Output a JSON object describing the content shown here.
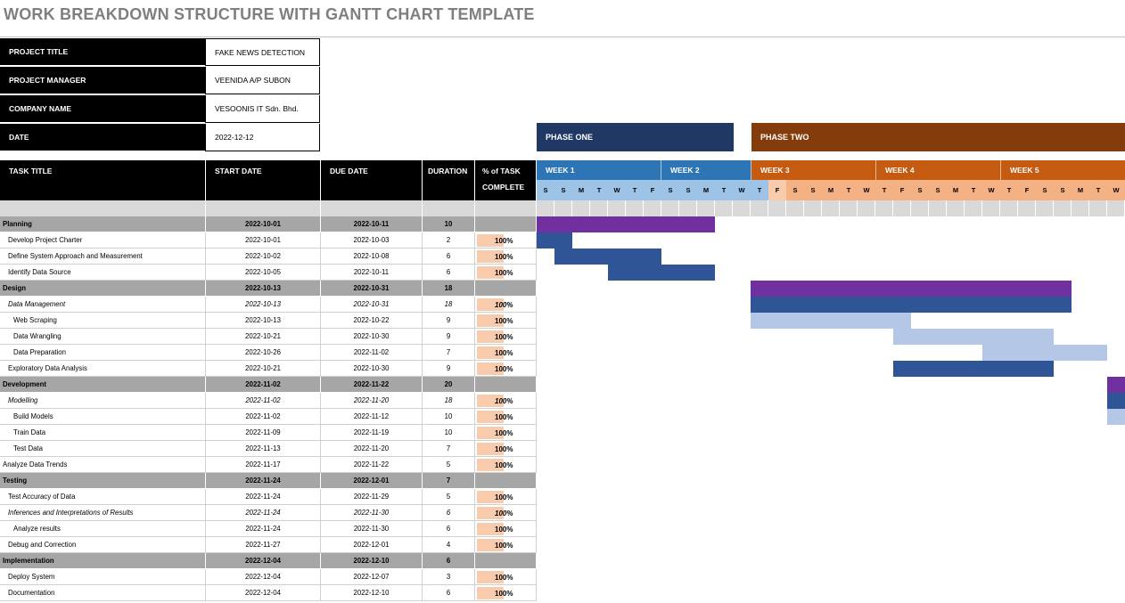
{
  "title": "WORK BREAKDOWN STRUCTURE WITH GANTT CHART TEMPLATE",
  "project_info": [
    {
      "label": "PROJECT TITLE",
      "value": "FAKE NEWS DETECTION"
    },
    {
      "label": "PROJECT MANAGER",
      "value": "VEENIDA A/P SUBON"
    },
    {
      "label": "COMPANY NAME",
      "value": "VESOONIS IT Sdn. Bhd."
    },
    {
      "label": "DATE",
      "value": "2022-12-12"
    }
  ],
  "phases": [
    {
      "label": "PHASE ONE",
      "color": "#203864"
    },
    {
      "label": "PHASE TWO",
      "color": "#843c0c"
    }
  ],
  "table_headers": {
    "task_title": "TASK TITLE",
    "start_date": "START DATE",
    "due_date": "DUE DATE",
    "duration": "DURATION",
    "pct_line1": "% of TASK",
    "pct_line2": "COMPLETE"
  },
  "weeks": [
    {
      "label": "WEEK 1",
      "color": "#2e75b6"
    },
    {
      "label": "WEEK 2",
      "color": "#2e75b6"
    },
    {
      "label": "WEEK 3",
      "color": "#c55a11"
    },
    {
      "label": "WEEK 4",
      "color": "#c55a11"
    },
    {
      "label": "WEEK 5",
      "color": "#c55a11"
    }
  ],
  "days": [
    "S",
    "S",
    "M",
    "T",
    "W",
    "T",
    "F",
    "S",
    "S",
    "M",
    "T",
    "W",
    "T",
    "F",
    "S",
    "S",
    "M",
    "T",
    "W",
    "T",
    "F",
    "S",
    "S",
    "M",
    "T",
    "W",
    "T",
    "F",
    "S",
    "S",
    "M",
    "T",
    "W"
  ],
  "tasks": [
    {
      "title": "Planning",
      "start": "2022-10-01",
      "due": "2022-10-11",
      "duration": "10",
      "pct": "",
      "kind": "phase"
    },
    {
      "title": "Develop Project Charter",
      "start": "2022-10-01",
      "due": "2022-10-03",
      "duration": "2",
      "pct": "100%",
      "kind": "task",
      "indent": 1
    },
    {
      "title": "Define System Approach and Measurement",
      "start": "2022-10-02",
      "due": "2022-10-08",
      "duration": "6",
      "pct": "100%",
      "kind": "task",
      "indent": 1
    },
    {
      "title": "Identify Data Source",
      "start": "2022-10-05",
      "due": "2022-10-11",
      "duration": "6",
      "pct": "100%",
      "kind": "task",
      "indent": 1
    },
    {
      "title": "Design",
      "start": "2022-10-13",
      "due": "2022-10-31",
      "duration": "18",
      "pct": "",
      "kind": "phase"
    },
    {
      "title": "Data Management",
      "start": "2022-10-13",
      "due": "2022-10-31",
      "duration": "18",
      "pct": "100%",
      "kind": "sub",
      "indent": 1
    },
    {
      "title": "Web Scraping",
      "start": "2022-10-13",
      "due": "2022-10-22",
      "duration": "9",
      "pct": "100%",
      "kind": "task",
      "indent": 2
    },
    {
      "title": "Data Wrangling",
      "start": "2022-10-21",
      "due": "2022-10-30",
      "duration": "9",
      "pct": "100%",
      "kind": "task",
      "indent": 2
    },
    {
      "title": "Data Preparation",
      "start": "2022-10-26",
      "due": "2022-11-02",
      "duration": "7",
      "pct": "100%",
      "kind": "task",
      "indent": 2
    },
    {
      "title": "Exploratory Data Analysis",
      "start": "2022-10-21",
      "due": "2022-10-30",
      "duration": "9",
      "pct": "100%",
      "kind": "task",
      "indent": 1
    },
    {
      "title": "Development",
      "start": "2022-11-02",
      "due": "2022-11-22",
      "duration": "20",
      "pct": "",
      "kind": "phase"
    },
    {
      "title": "Modelling",
      "start": "2022-11-02",
      "due": "2022-11-20",
      "duration": "18",
      "pct": "100%",
      "kind": "sub",
      "indent": 1
    },
    {
      "title": "Build Models",
      "start": "2022-11-02",
      "due": "2022-11-12",
      "duration": "10",
      "pct": "100%",
      "kind": "task",
      "indent": 2
    },
    {
      "title": "Train Data",
      "start": "2022-11-09",
      "due": "2022-11-19",
      "duration": "10",
      "pct": "100%",
      "kind": "task",
      "indent": 2
    },
    {
      "title": "Test Data",
      "start": "2022-11-13",
      "due": "2022-11-20",
      "duration": "7",
      "pct": "100%",
      "kind": "task",
      "indent": 2
    },
    {
      "title": "Analyze Data Trends",
      "start": "2022-11-17",
      "due": "2022-11-22",
      "duration": "5",
      "pct": "100%",
      "kind": "task",
      "indent": 0
    },
    {
      "title": "Testing",
      "start": "2022-11-24",
      "due": "2022-12-01",
      "duration": "7",
      "pct": "",
      "kind": "phase"
    },
    {
      "title": "Test Accuracy of Data",
      "start": "2022-11-24",
      "due": "2022-11-29",
      "duration": "5",
      "pct": "100%",
      "kind": "task",
      "indent": 1
    },
    {
      "title": "Inferences and Interpretations of Results",
      "start": "2022-11-24",
      "due": "2022-11-30",
      "duration": "6",
      "pct": "100%",
      "kind": "sub",
      "indent": 1
    },
    {
      "title": "Analyze results",
      "start": "2022-11-24",
      "due": "2022-11-30",
      "duration": "6",
      "pct": "100%",
      "kind": "task",
      "indent": 2
    },
    {
      "title": "Debug and Correction",
      "start": "2022-11-27",
      "due": "2022-12-01",
      "duration": "4",
      "pct": "100%",
      "kind": "task",
      "indent": 1
    },
    {
      "title": "Implementation",
      "start": "2022-12-04",
      "due": "2022-12-10",
      "duration": "6",
      "pct": "",
      "kind": "phase"
    },
    {
      "title": "Deploy System",
      "start": "2022-12-04",
      "due": "2022-12-07",
      "duration": "3",
      "pct": "100%",
      "kind": "task",
      "indent": 1
    },
    {
      "title": "Documentation",
      "start": "2022-12-04",
      "due": "2022-12-10",
      "duration": "6",
      "pct": "100%",
      "kind": "task",
      "indent": 1
    }
  ],
  "colors": {
    "phase_bar": "#7030a0",
    "task_bar": "#2f5597",
    "light_bar": "#b4c7e7",
    "pct_fill": "#f8cbad",
    "header_bg": "#000000",
    "phase_row_bg": "#a6a6a6"
  }
}
